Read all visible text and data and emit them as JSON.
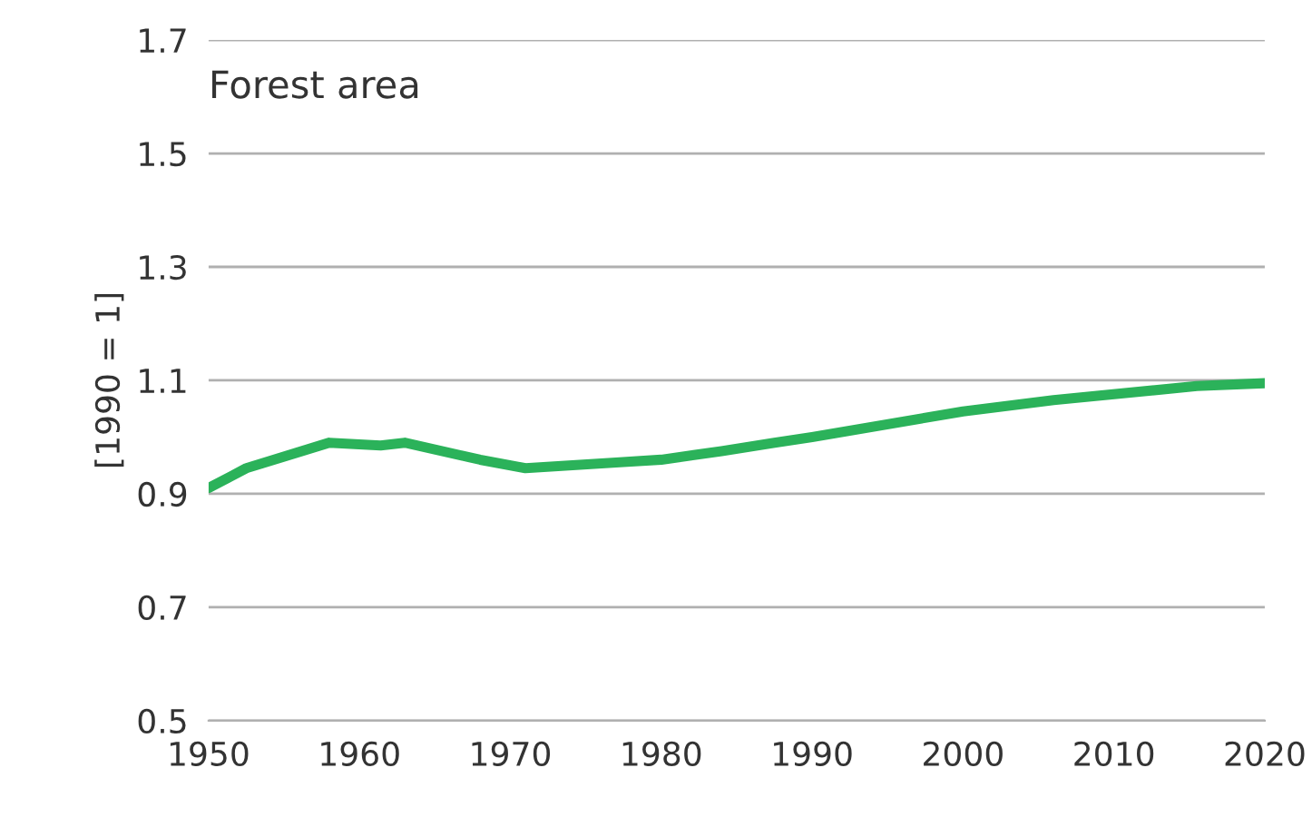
{
  "chart_data": {
    "type": "line",
    "title": "Forest area",
    "ylabel": "[1990 = 1]",
    "x": [
      1950,
      1952.5,
      1958,
      1961.4,
      1963,
      1968,
      1971,
      1977,
      1980,
      1984,
      1987.5,
      1990,
      2000,
      2006,
      2015.5,
      2020
    ],
    "series": [
      {
        "color": "#2bb25a",
        "values": [
          0.91,
          0.945,
          0.99,
          0.985,
          0.99,
          0.96,
          0.945,
          0.955,
          0.96,
          0.975,
          0.99,
          1.0,
          1.045,
          1.065,
          1.09,
          1.095
        ]
      }
    ],
    "xlim": [
      1950,
      2020
    ],
    "xticks": [
      1950,
      1960,
      1970,
      1980,
      1990,
      2000,
      2010,
      2020
    ],
    "ylim": [
      0.5,
      1.7
    ],
    "yticks": [
      0.5,
      0.7,
      0.9,
      1.1,
      1.3,
      1.5,
      1.7
    ],
    "grid": "y",
    "legend": false,
    "marker": "none",
    "line_style": "solid"
  }
}
